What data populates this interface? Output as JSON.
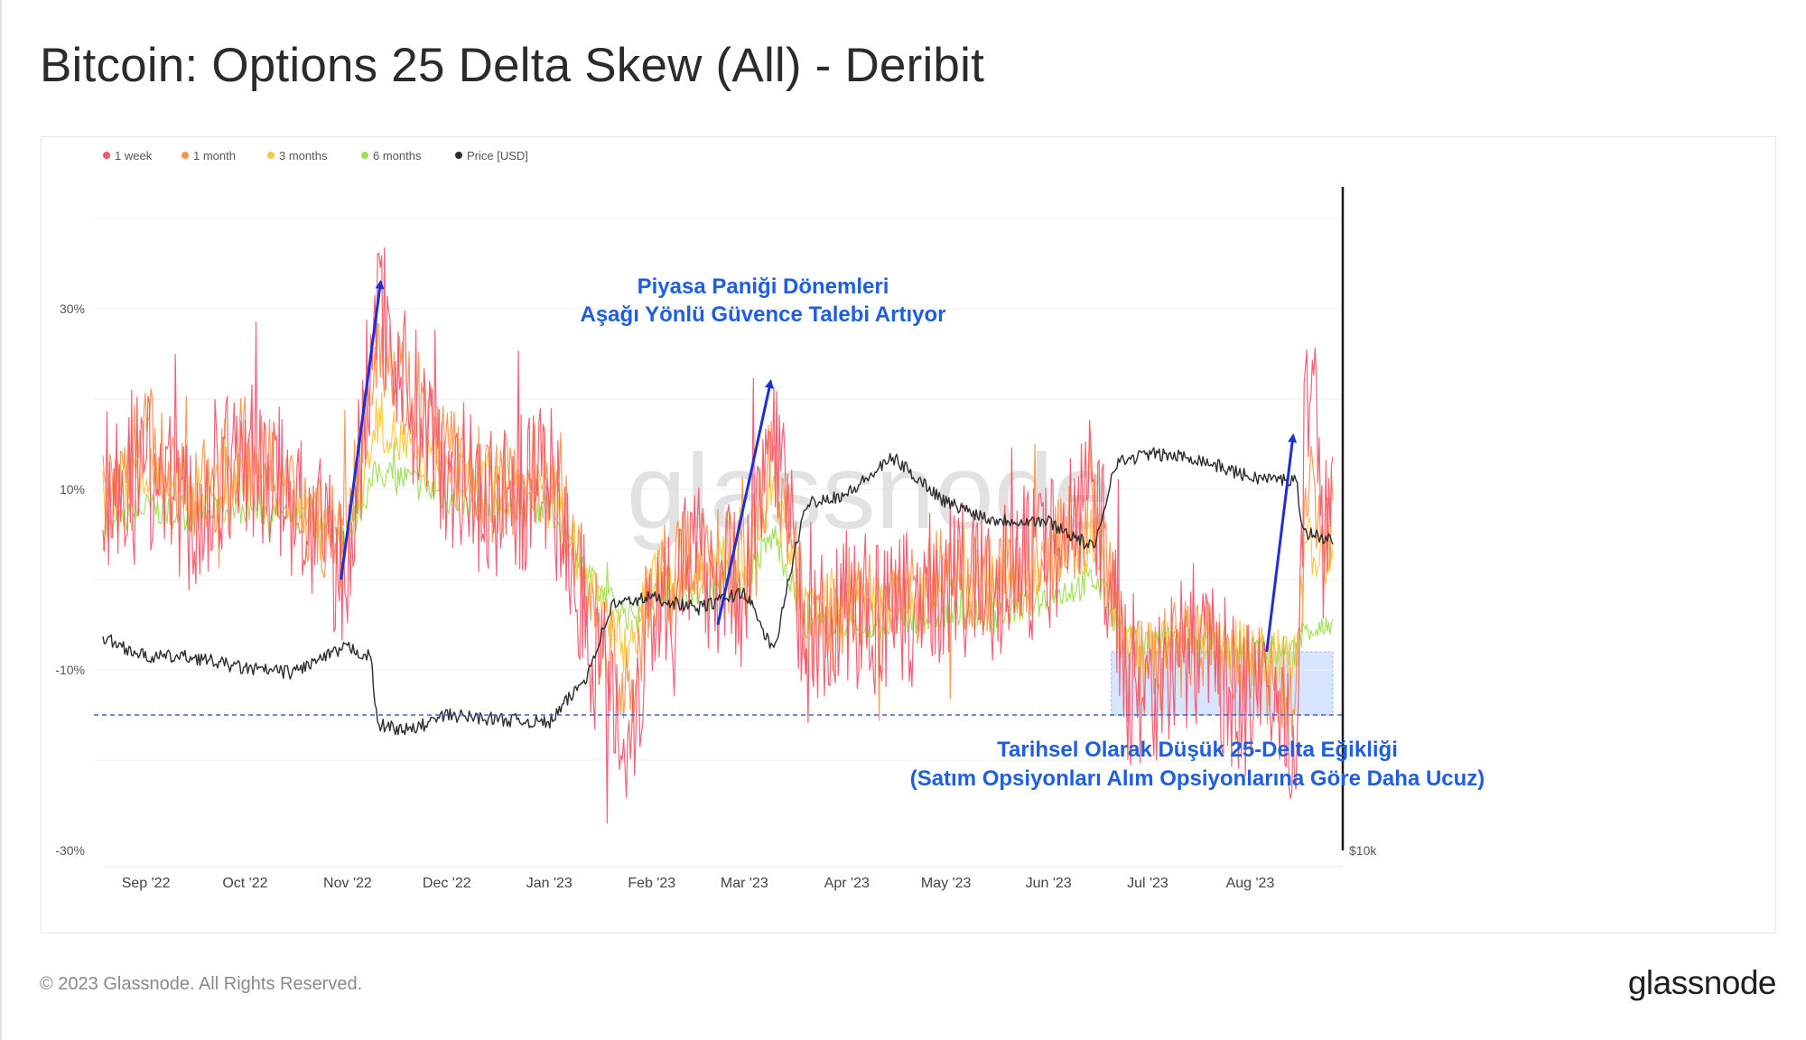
{
  "title": "Bitcoin: Options 25 Delta Skew (All) - Deribit",
  "footer": "© 2023 Glassnode. All Rights Reserved.",
  "brand": "glassnode",
  "watermark": "glassnode",
  "chart_data": {
    "type": "line",
    "title": "Bitcoin: Options 25 Delta Skew (All) - Deribit",
    "x_range": [
      "2022-08-19",
      "2023-08-26"
    ],
    "y_range_pct": [
      -30,
      45
    ],
    "y_ticks": [
      {
        "value": 30,
        "label": "30%"
      },
      {
        "value": 10,
        "label": "10%"
      },
      {
        "value": -10,
        "label": "-10%"
      },
      {
        "value": -30,
        "label": "-30%"
      }
    ],
    "y2_label": "$10k",
    "x_ticks": [
      {
        "date": "2022-09-01",
        "label": "Sep '22"
      },
      {
        "date": "2022-10-01",
        "label": "Oct '22"
      },
      {
        "date": "2022-11-01",
        "label": "Nov '22"
      },
      {
        "date": "2022-12-01",
        "label": "Dec '22"
      },
      {
        "date": "2023-01-01",
        "label": "Jan '23"
      },
      {
        "date": "2023-02-01",
        "label": "Feb '23"
      },
      {
        "date": "2023-03-01",
        "label": "Mar '23"
      },
      {
        "date": "2023-04-01",
        "label": "Apr '23"
      },
      {
        "date": "2023-05-01",
        "label": "May '23"
      },
      {
        "date": "2023-06-01",
        "label": "Jun '23"
      },
      {
        "date": "2023-07-01",
        "label": "Jul '23"
      },
      {
        "date": "2023-08-01",
        "label": "Aug '23"
      }
    ],
    "legend": [
      {
        "name": "1 week",
        "color": "#f2566d"
      },
      {
        "name": "1 month",
        "color": "#f7944a"
      },
      {
        "name": "3 months",
        "color": "#f8c93a"
      },
      {
        "name": "6 months",
        "color": "#9be04e"
      },
      {
        "name": "Price [USD]",
        "color": "#2c2c2c"
      }
    ],
    "series": [
      {
        "name": "1 week",
        "color": "#f2566d",
        "dates": [
          "2022-08-19",
          "2022-09-01",
          "2022-09-15",
          "2022-10-01",
          "2022-10-15",
          "2022-11-01",
          "2022-11-10",
          "2022-11-20",
          "2022-12-01",
          "2022-12-15",
          "2023-01-01",
          "2023-01-15",
          "2023-01-25",
          "2023-02-01",
          "2023-02-15",
          "2023-03-01",
          "2023-03-10",
          "2023-03-20",
          "2023-04-01",
          "2023-04-15",
          "2023-05-01",
          "2023-05-15",
          "2023-06-01",
          "2023-06-15",
          "2023-06-25",
          "2023-07-01",
          "2023-07-15",
          "2023-08-01",
          "2023-08-15",
          "2023-08-18",
          "2023-08-26"
        ],
        "values": [
          10,
          14,
          6,
          14,
          9,
          0,
          32,
          20,
          13,
          8,
          11,
          -8,
          -18,
          -3,
          2,
          -1,
          18,
          -8,
          -3,
          -5,
          0,
          -1,
          3,
          10,
          -12,
          -12,
          -7,
          -14,
          -16,
          22,
          6
        ]
      },
      {
        "name": "1 month",
        "color": "#f7944a",
        "dates": [
          "2022-08-19",
          "2022-09-01",
          "2022-09-15",
          "2022-10-01",
          "2022-10-15",
          "2022-11-01",
          "2022-11-10",
          "2022-11-20",
          "2022-12-01",
          "2022-12-15",
          "2023-01-01",
          "2023-01-15",
          "2023-01-25",
          "2023-02-01",
          "2023-02-15",
          "2023-03-01",
          "2023-03-10",
          "2023-03-20",
          "2023-04-01",
          "2023-04-15",
          "2023-05-01",
          "2023-05-15",
          "2023-06-01",
          "2023-06-15",
          "2023-06-25",
          "2023-07-01",
          "2023-07-15",
          "2023-08-01",
          "2023-08-15",
          "2023-08-18",
          "2023-08-26"
        ],
        "values": [
          10,
          16,
          8,
          15,
          9,
          4,
          28,
          20,
          14,
          10,
          12,
          -4,
          -14,
          -1,
          3,
          1,
          14,
          -6,
          -3,
          -3,
          0,
          0,
          3,
          7,
          -10,
          -10,
          -7,
          -11,
          -12,
          10,
          6
        ]
      },
      {
        "name": "3 months",
        "color": "#f8c93a",
        "dates": [
          "2022-08-19",
          "2022-09-01",
          "2022-09-15",
          "2022-10-01",
          "2022-10-15",
          "2022-11-01",
          "2022-11-10",
          "2022-11-20",
          "2022-12-01",
          "2022-12-15",
          "2023-01-01",
          "2023-01-15",
          "2023-01-25",
          "2023-02-01",
          "2023-02-15",
          "2023-03-01",
          "2023-03-10",
          "2023-03-20",
          "2023-04-01",
          "2023-04-15",
          "2023-05-01",
          "2023-05-15",
          "2023-06-01",
          "2023-06-15",
          "2023-06-25",
          "2023-07-01",
          "2023-07-15",
          "2023-08-01",
          "2023-08-15",
          "2023-08-18",
          "2023-08-26"
        ],
        "values": [
          9,
          12,
          9,
          12,
          9,
          5,
          18,
          14,
          12,
          10,
          11,
          -2,
          -8,
          0,
          2,
          2,
          10,
          -4,
          -2,
          -2,
          0,
          0,
          2,
          4,
          -8,
          -8,
          -6,
          -8,
          -9,
          4,
          2
        ]
      },
      {
        "name": "6 months",
        "color": "#9be04e",
        "dates": [
          "2022-08-19",
          "2022-09-01",
          "2022-09-15",
          "2022-10-01",
          "2022-10-15",
          "2022-11-01",
          "2022-11-10",
          "2022-11-20",
          "2022-12-01",
          "2022-12-15",
          "2023-01-01",
          "2023-01-15",
          "2023-01-25",
          "2023-02-01",
          "2023-02-15",
          "2023-03-01",
          "2023-03-10",
          "2023-03-20",
          "2023-04-01",
          "2023-04-15",
          "2023-05-01",
          "2023-05-15",
          "2023-06-01",
          "2023-06-15",
          "2023-06-25",
          "2023-07-01",
          "2023-07-15",
          "2023-08-01",
          "2023-08-15",
          "2023-08-18",
          "2023-08-26"
        ],
        "values": [
          5,
          8,
          7,
          8,
          7,
          5,
          12,
          11,
          9,
          8,
          8,
          -1,
          -4,
          -2,
          -1,
          0,
          5,
          -5,
          -5,
          -5,
          -4,
          -4,
          -2,
          0,
          -7,
          -7,
          -7,
          -8,
          -8,
          -5,
          -6
        ]
      },
      {
        "name": "Price [USD]",
        "color": "#2c2c2c",
        "dates": [
          "2022-08-19",
          "2022-09-01",
          "2022-09-15",
          "2022-10-01",
          "2022-10-15",
          "2022-11-01",
          "2022-11-08",
          "2022-11-10",
          "2022-11-20",
          "2022-12-01",
          "2022-12-15",
          "2023-01-01",
          "2023-01-12",
          "2023-01-20",
          "2023-02-01",
          "2023-02-15",
          "2023-03-01",
          "2023-03-10",
          "2023-03-15",
          "2023-03-20",
          "2023-04-01",
          "2023-04-15",
          "2023-05-01",
          "2023-05-15",
          "2023-06-01",
          "2023-06-15",
          "2023-06-21",
          "2023-07-01",
          "2023-07-15",
          "2023-08-01",
          "2023-08-15",
          "2023-08-17",
          "2023-08-26"
        ],
        "values": [
          21000,
          20000,
          20000,
          19400,
          19200,
          20500,
          20000,
          16500,
          16200,
          17000,
          16800,
          16600,
          18900,
          22700,
          23100,
          22500,
          23400,
          20200,
          24500,
          28000,
          28400,
          30300,
          28000,
          27100,
          27000,
          25600,
          30000,
          30500,
          30300,
          29300,
          29100,
          26500,
          26000
        ]
      }
    ],
    "annotations": [
      {
        "text": "Piyasa Paniği Dönemleri",
        "color": "#1f5ee0"
      },
      {
        "text": "Aşağı Yönlü Güvence Talebi Artıyor",
        "color": "#1f5ee0"
      },
      {
        "text": "Tarihsel Olarak Düşük 25-Delta Eğikliği",
        "color": "#1f5ee0"
      },
      {
        "text": "(Satım Opsiyonları Alım Opsiyonlarına Göre Daha Ucuz)",
        "color": "#1f5ee0"
      }
    ],
    "reference_line": {
      "value_pct": -15,
      "style": "dashed",
      "color": "#3a64d8"
    },
    "shaded_region": {
      "from": "2023-06-20",
      "to": "2023-08-26",
      "y_from_pct": -15,
      "y_to_pct": -8,
      "color": "#c9dcff"
    },
    "arrows": [
      {
        "from": {
          "date": "2022-10-30",
          "value_pct": 0
        },
        "to": {
          "date": "2022-11-11",
          "value_pct": 33
        },
        "color": "#1c2fd9"
      },
      {
        "from": {
          "date": "2023-02-21",
          "value_pct": -5
        },
        "to": {
          "date": "2023-03-09",
          "value_pct": 22
        },
        "color": "#1c2fd9"
      },
      {
        "from": {
          "date": "2023-08-06",
          "value_pct": -8
        },
        "to": {
          "date": "2023-08-14",
          "value_pct": 16
        },
        "color": "#1c2fd9"
      }
    ]
  }
}
